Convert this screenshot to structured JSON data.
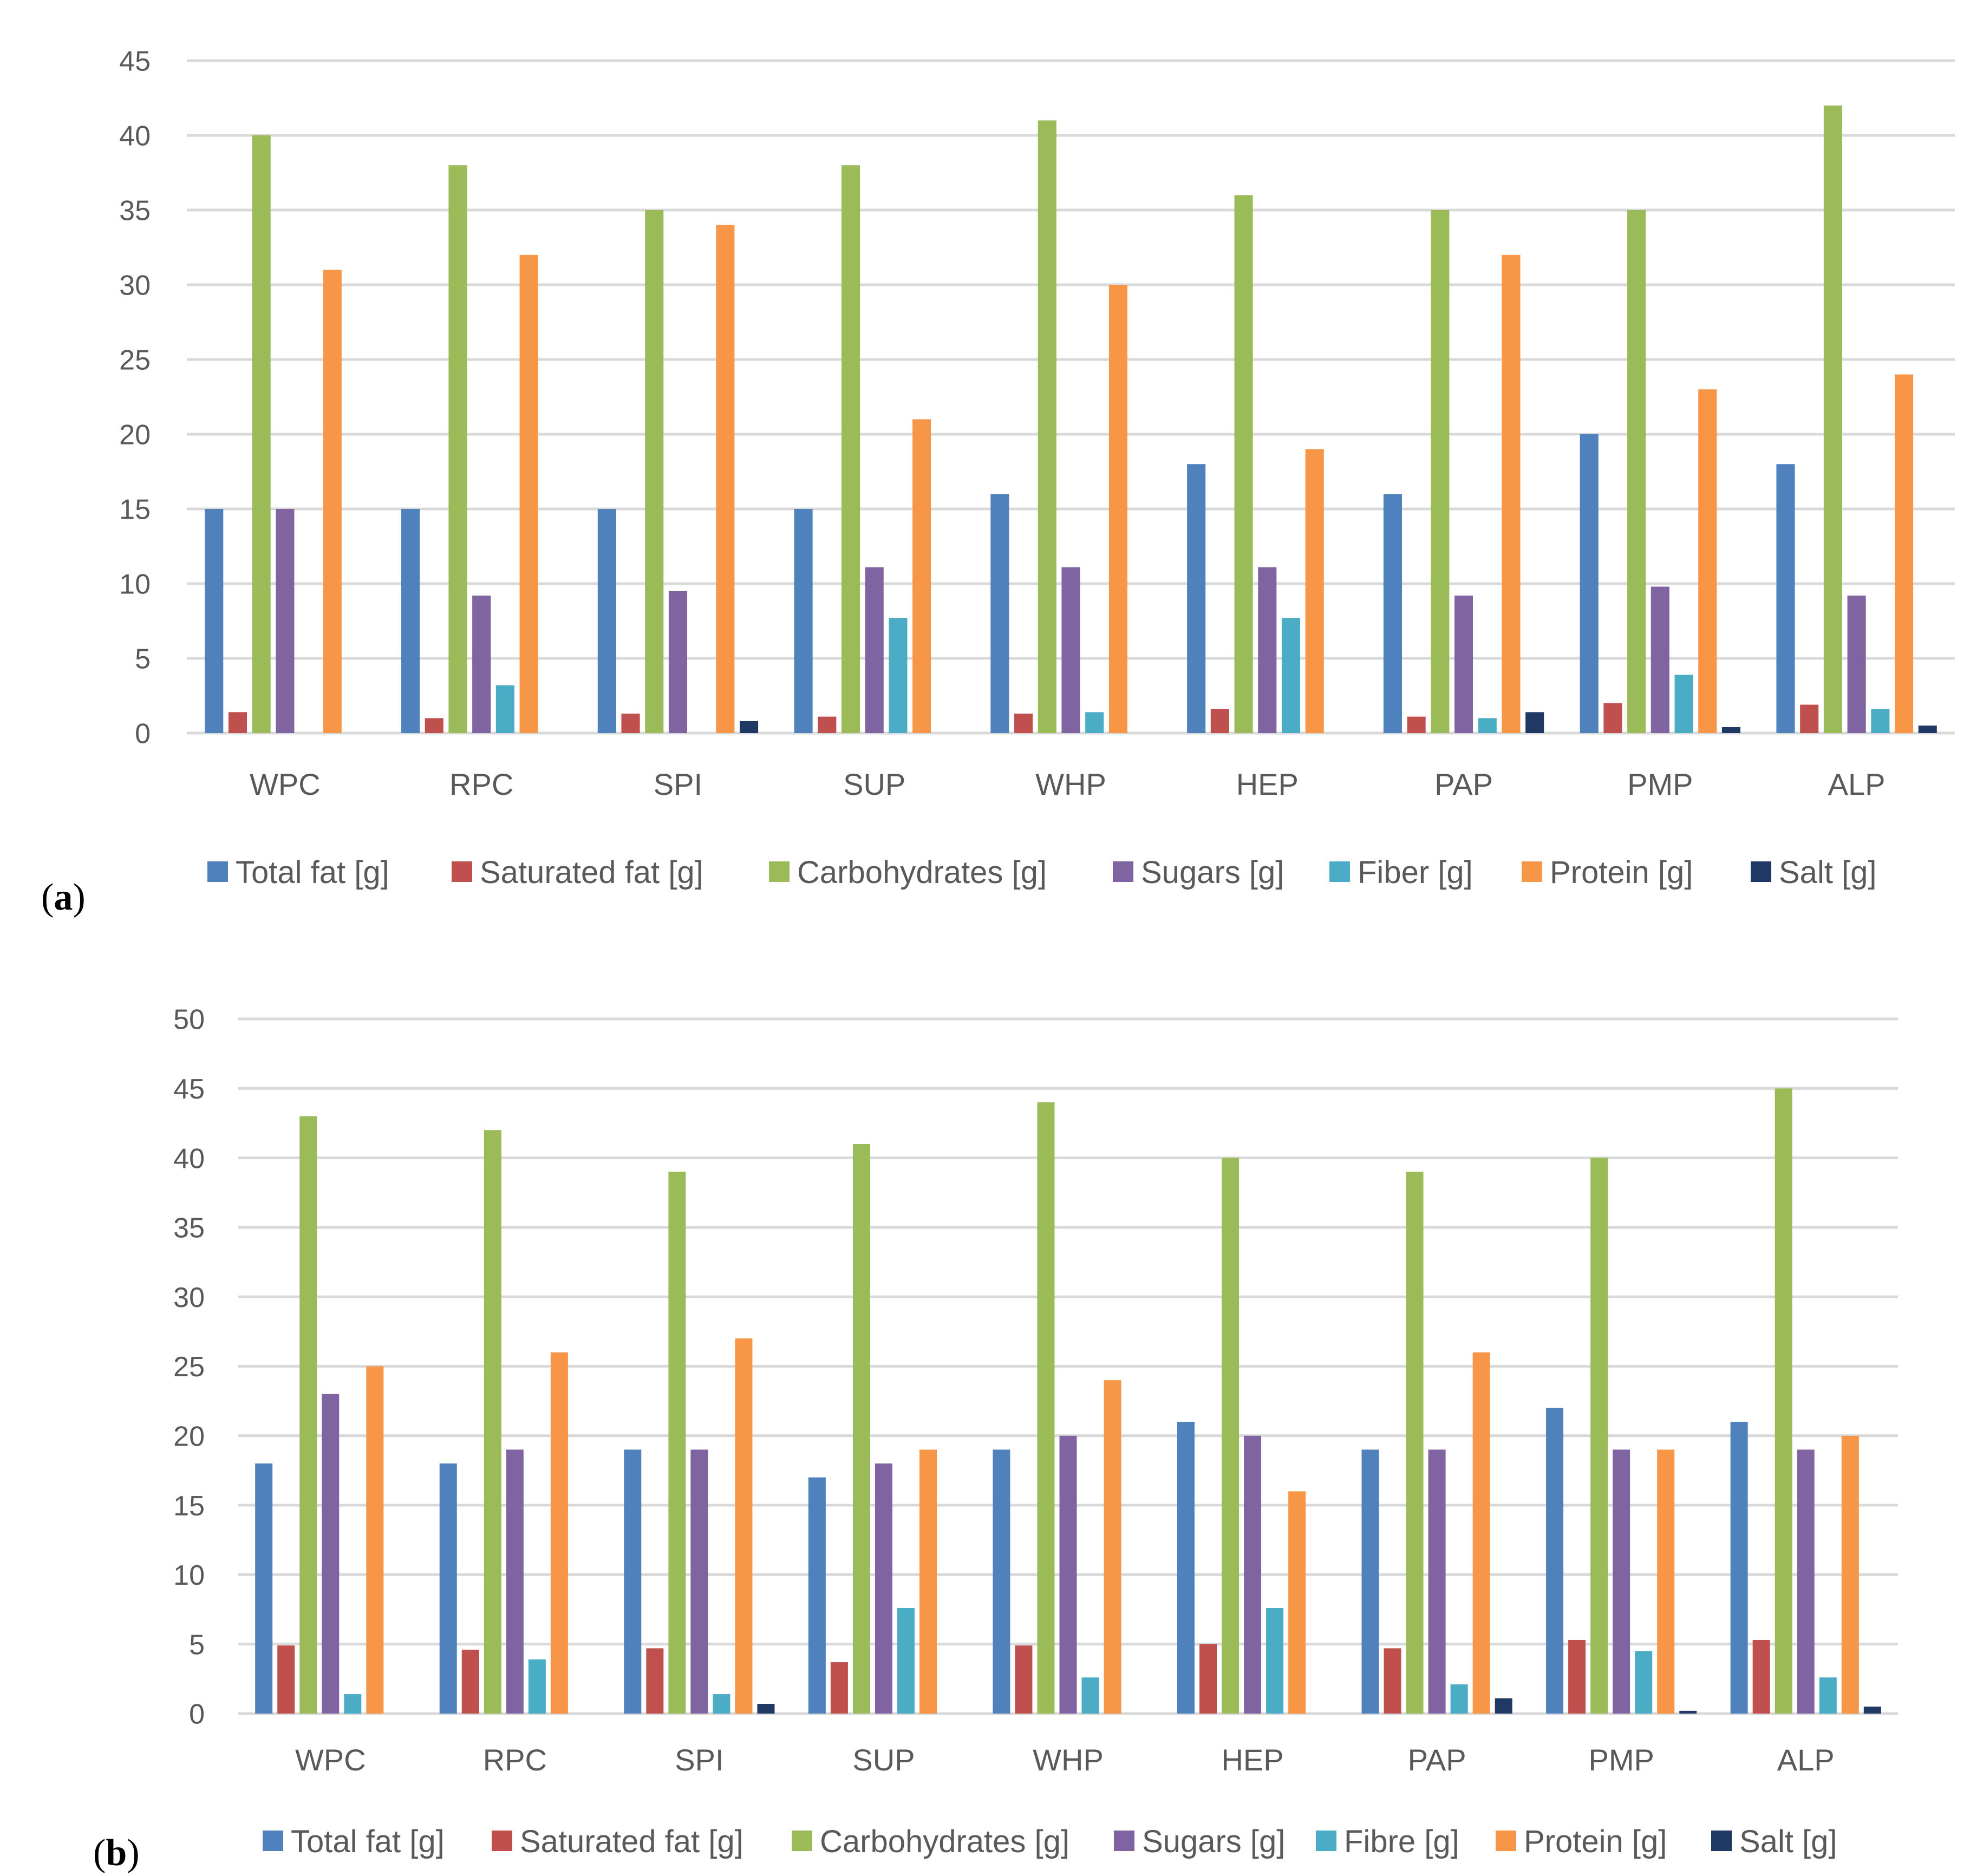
{
  "colors": {
    "Total fat": "#4F81BD",
    "Saturated fat": "#C0504D",
    "Carbohydrates": "#9BBB59",
    "Sugars": "#8064A2",
    "Fiber": "#4BACC6",
    "Protein": "#F79646",
    "Salt": "#1F3864",
    "grid": "#D9D9D9",
    "text": "#595959"
  },
  "chart_data": [
    {
      "type": "bar",
      "panel": "a",
      "panel_label": {
        "open": "(",
        "letter": "a",
        "close": ")"
      },
      "categories": [
        "WPC",
        "RPC",
        "SPI",
        "SUP",
        "WHP",
        "HEP",
        "PAP",
        "PMP",
        "ALP"
      ],
      "ylim": [
        0,
        45
      ],
      "yticks": [
        0,
        5,
        10,
        15,
        20,
        25,
        30,
        35,
        40,
        45
      ],
      "grid": true,
      "legend_position": "bottom",
      "series": [
        {
          "name": "Total fat [g]",
          "key": "Total fat",
          "values": [
            15,
            15,
            15,
            15,
            16,
            18,
            16,
            20,
            18
          ]
        },
        {
          "name": "Saturated fat [g]",
          "key": "Saturated fat",
          "values": [
            1.4,
            1.0,
            1.3,
            1.1,
            1.3,
            1.6,
            1.1,
            2.0,
            1.9
          ]
        },
        {
          "name": "Carbohydrates [g]",
          "key": "Carbohydrates",
          "values": [
            40,
            38,
            35,
            38,
            41,
            36,
            35,
            35,
            42
          ]
        },
        {
          "name": "Sugars [g]",
          "key": "Sugars",
          "values": [
            15,
            9.2,
            9.5,
            11.1,
            11.1,
            11.1,
            9.2,
            9.8,
            9.2
          ]
        },
        {
          "name": "Fiber [g]",
          "key": "Fiber",
          "values": [
            0,
            3.2,
            0,
            7.7,
            1.4,
            7.7,
            1.0,
            3.9,
            1.6
          ]
        },
        {
          "name": "Protein [g]",
          "key": "Protein",
          "values": [
            31,
            32,
            34,
            21,
            30,
            19,
            32,
            23,
            24
          ]
        },
        {
          "name": "Salt [g]",
          "key": "Salt",
          "values": [
            0,
            0,
            0.8,
            0,
            0,
            0,
            1.4,
            0.4,
            0.5
          ]
        }
      ]
    },
    {
      "type": "bar",
      "panel": "b",
      "panel_label": {
        "open": "(",
        "letter": "b",
        "close": ")"
      },
      "categories": [
        "WPC",
        "RPC",
        "SPI",
        "SUP",
        "WHP",
        "HEP",
        "PAP",
        "PMP",
        "ALP"
      ],
      "ylim": [
        0,
        50
      ],
      "yticks": [
        0,
        5,
        10,
        15,
        20,
        25,
        30,
        35,
        40,
        45,
        50
      ],
      "grid": true,
      "legend_position": "bottom",
      "series": [
        {
          "name": "Total fat [g]",
          "key": "Total fat",
          "values": [
            18,
            18,
            19,
            17,
            19,
            21,
            19,
            22,
            21
          ]
        },
        {
          "name": "Saturated fat [g]",
          "key": "Saturated fat",
          "values": [
            4.9,
            4.6,
            4.7,
            3.7,
            4.9,
            5.0,
            4.7,
            5.3,
            5.3
          ]
        },
        {
          "name": "Carbohydrates [g]",
          "key": "Carbohydrates",
          "values": [
            43,
            42,
            39,
            41,
            44,
            40,
            39,
            40,
            45
          ]
        },
        {
          "name": "Sugars [g]",
          "key": "Sugars",
          "values": [
            23,
            19,
            19,
            18,
            20,
            20,
            19,
            19,
            19
          ]
        },
        {
          "name": "Fibre [g]",
          "key": "Fiber",
          "values": [
            1.4,
            3.9,
            1.4,
            7.6,
            2.6,
            7.6,
            2.1,
            4.5,
            2.6
          ]
        },
        {
          "name": "Protein [g]",
          "key": "Protein",
          "values": [
            25,
            26,
            27,
            19,
            24,
            16,
            26,
            19,
            20
          ]
        },
        {
          "name": "Salt [g]",
          "key": "Salt",
          "values": [
            0,
            0,
            0.7,
            0,
            0,
            0,
            1.1,
            0.2,
            0.5
          ]
        }
      ]
    }
  ]
}
